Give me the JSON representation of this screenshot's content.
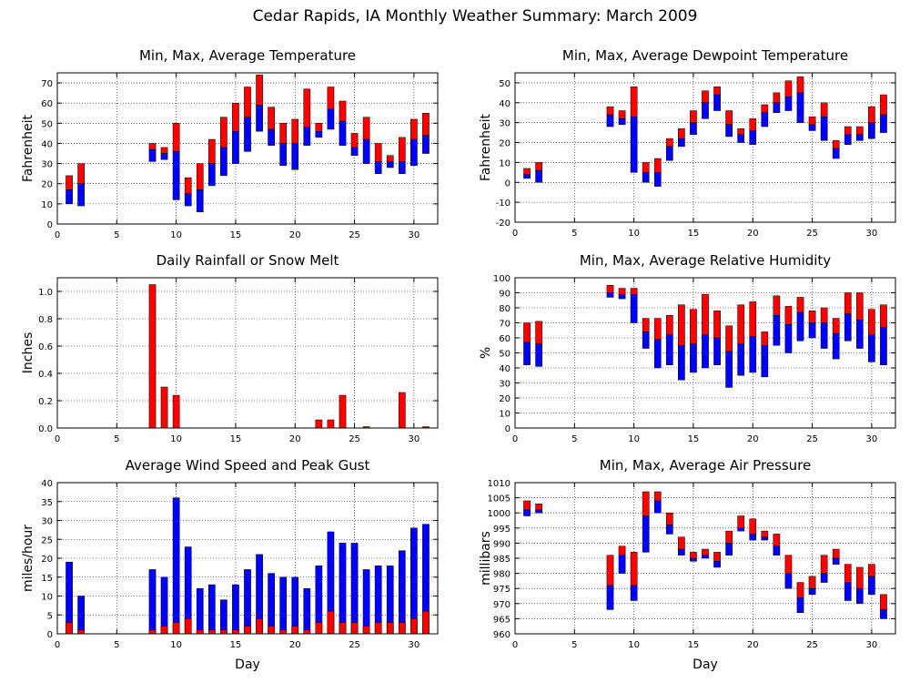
{
  "page": {
    "title": "Cedar Rapids, IA Monthly Weather Summary: March 2009"
  },
  "colors": {
    "red": "#ff0000",
    "blue": "#0000ff"
  },
  "chart_data": [
    {
      "id": "temp",
      "type": "bar",
      "title": "Min, Max, Average Temperature",
      "xlabel": "",
      "ylabel": "Fahrenheit",
      "xlim": [
        0,
        32
      ],
      "xticks": [
        0,
        5,
        10,
        15,
        20,
        25,
        30
      ],
      "ylim": [
        0,
        75
      ],
      "yticks": [
        0,
        10,
        20,
        30,
        40,
        50,
        60,
        70
      ],
      "grid": true,
      "encoding": "floating bars: blue from min to avg, red from avg to max",
      "days": [
        1,
        2,
        8,
        9,
        10,
        11,
        12,
        13,
        14,
        15,
        16,
        17,
        18,
        19,
        20,
        21,
        22,
        23,
        24,
        25,
        26,
        27,
        28,
        29,
        30,
        31
      ],
      "min": [
        10,
        9,
        31,
        32,
        12,
        9,
        6,
        19,
        24,
        30,
        36,
        46,
        39,
        29,
        27,
        39,
        43,
        47,
        39,
        34,
        30,
        25,
        28,
        25,
        29,
        35
      ],
      "avg": [
        17,
        20,
        37,
        35,
        36,
        15,
        17,
        30,
        38,
        46,
        53,
        59,
        47,
        40,
        40,
        48,
        46,
        57,
        51,
        38,
        42,
        31,
        31,
        31,
        42,
        44
      ],
      "max": [
        24,
        30,
        40,
        38,
        50,
        23,
        30,
        42,
        53,
        60,
        68,
        74,
        58,
        50,
        52,
        67,
        50,
        68,
        61,
        45,
        53,
        40,
        34,
        43,
        52,
        55
      ]
    },
    {
      "id": "dewpoint",
      "type": "bar",
      "title": "Min, Max, Average Dewpoint Temperature",
      "xlabel": "",
      "ylabel": "Fahrenheit",
      "xlim": [
        0,
        32
      ],
      "xticks": [
        0,
        5,
        10,
        15,
        20,
        25,
        30
      ],
      "ylim": [
        -20,
        55
      ],
      "yticks": [
        -20,
        -10,
        0,
        10,
        20,
        30,
        40,
        50
      ],
      "grid": true,
      "encoding": "floating bars: blue from min to avg, red from avg to max",
      "days": [
        1,
        2,
        8,
        9,
        10,
        11,
        12,
        13,
        14,
        15,
        16,
        17,
        18,
        19,
        20,
        21,
        22,
        23,
        24,
        25,
        26,
        27,
        28,
        29,
        30,
        31
      ],
      "min": [
        2,
        0,
        28,
        29,
        5,
        0,
        -2,
        11,
        18,
        24,
        32,
        36,
        23,
        20,
        19,
        28,
        35,
        36,
        30,
        26,
        21,
        12,
        19,
        21,
        22,
        25
      ],
      "avg": [
        4,
        6,
        34,
        32,
        33,
        5,
        5,
        18,
        22,
        30,
        40,
        44,
        29,
        24,
        26,
        35,
        40,
        43,
        45,
        29,
        33,
        17,
        24,
        24,
        30,
        34
      ],
      "max": [
        7,
        10,
        38,
        36,
        48,
        10,
        12,
        22,
        27,
        36,
        46,
        48,
        36,
        27,
        32,
        39,
        45,
        51,
        53,
        33,
        40,
        21,
        28,
        28,
        38,
        44
      ]
    },
    {
      "id": "rain",
      "type": "bar",
      "title": "Daily Rainfall or Snow Melt",
      "xlabel": "",
      "ylabel": "Inches",
      "xlim": [
        0,
        32
      ],
      "xticks": [
        0,
        5,
        10,
        15,
        20,
        25,
        30
      ],
      "ylim": [
        0,
        1.1
      ],
      "yticks": [
        0.0,
        0.2,
        0.4,
        0.6,
        0.8,
        1.0
      ],
      "ytick_labels": [
        "0.0",
        "0.2",
        "0.4",
        "0.6",
        "0.8",
        "1.0"
      ],
      "grid": true,
      "days": [
        8,
        9,
        10,
        22,
        23,
        24,
        26,
        29,
        31
      ],
      "values": [
        1.05,
        0.3,
        0.24,
        0.06,
        0.06,
        0.24,
        0.01,
        0.26,
        0.01
      ]
    },
    {
      "id": "rh",
      "type": "bar",
      "title": "Min, Max, Average Relative Humidity",
      "xlabel": "",
      "ylabel": "%",
      "xlim": [
        0,
        32
      ],
      "xticks": [
        0,
        5,
        10,
        15,
        20,
        25,
        30
      ],
      "ylim": [
        0,
        100
      ],
      "yticks": [
        0,
        10,
        20,
        30,
        40,
        50,
        60,
        70,
        80,
        90,
        100
      ],
      "grid": true,
      "encoding": "floating bars: blue from min to avg, red from avg to max",
      "days": [
        1,
        2,
        8,
        9,
        10,
        11,
        12,
        13,
        14,
        15,
        16,
        17,
        18,
        19,
        20,
        21,
        22,
        23,
        24,
        25,
        26,
        27,
        28,
        29,
        30,
        31
      ],
      "min": [
        42,
        41,
        87,
        86,
        70,
        53,
        40,
        42,
        32,
        37,
        40,
        42,
        27,
        35,
        37,
        34,
        55,
        50,
        58,
        60,
        53,
        46,
        58,
        53,
        44,
        42
      ],
      "avg": [
        57,
        56,
        90,
        89,
        89,
        64,
        59,
        62,
        55,
        56,
        62,
        60,
        51,
        56,
        61,
        55,
        75,
        69,
        77,
        70,
        70,
        63,
        76,
        72,
        62,
        67
      ],
      "max": [
        70,
        71,
        95,
        93,
        93,
        73,
        73,
        75,
        82,
        79,
        89,
        78,
        68,
        82,
        84,
        64,
        88,
        81,
        87,
        78,
        80,
        73,
        90,
        90,
        79,
        82
      ]
    },
    {
      "id": "wind",
      "type": "bar",
      "title": "Average Wind Speed and Peak Gust",
      "xlabel": "Day",
      "ylabel": "miles/hour",
      "xlim": [
        0,
        32
      ],
      "xticks": [
        0,
        5,
        10,
        15,
        20,
        25,
        30
      ],
      "ylim": [
        0,
        40
      ],
      "yticks": [
        0,
        5,
        10,
        15,
        20,
        25,
        30,
        35,
        40
      ],
      "grid": true,
      "encoding": "blue bar from 0 to peak gust, red bar from 0 to average speed",
      "days": [
        1,
        2,
        8,
        9,
        10,
        11,
        12,
        13,
        14,
        15,
        16,
        17,
        18,
        19,
        20,
        21,
        22,
        23,
        24,
        25,
        26,
        27,
        28,
        29,
        30,
        31
      ],
      "avg": [
        3,
        1,
        1,
        2,
        3,
        4,
        1,
        1,
        1,
        1,
        2,
        4,
        2,
        1,
        2,
        1,
        3,
        6,
        3,
        3,
        2,
        3,
        3,
        3,
        4,
        6
      ],
      "gust": [
        19,
        10,
        17,
        15,
        36,
        23,
        12,
        13,
        9,
        13,
        17,
        21,
        16,
        15,
        15,
        12,
        18,
        27,
        24,
        24,
        17,
        18,
        18,
        22,
        28,
        29
      ]
    },
    {
      "id": "pressure",
      "type": "bar",
      "title": "Min, Max, Average Air Pressure",
      "xlabel": "Day",
      "ylabel": "millibars",
      "xlim": [
        0,
        32
      ],
      "xticks": [
        0,
        5,
        10,
        15,
        20,
        25,
        30
      ],
      "ylim": [
        960,
        1010
      ],
      "yticks": [
        960,
        965,
        970,
        975,
        980,
        985,
        990,
        995,
        1000,
        1005,
        1010
      ],
      "grid": true,
      "encoding": "floating bars: blue from min to avg, red from avg to max",
      "days": [
        1,
        2,
        8,
        9,
        10,
        11,
        12,
        13,
        14,
        15,
        16,
        17,
        18,
        19,
        20,
        21,
        22,
        23,
        24,
        25,
        26,
        27,
        28,
        29,
        30,
        31
      ],
      "min": [
        999,
        1000,
        968,
        980,
        971,
        987,
        1000,
        993,
        986,
        984,
        985,
        982,
        986,
        994,
        991,
        991,
        986,
        975,
        967,
        973,
        977,
        983,
        971,
        970,
        973,
        965
      ],
      "avg": [
        1001,
        1001,
        976,
        986,
        976,
        999,
        1004,
        996,
        988,
        985,
        986,
        984,
        990,
        995,
        993,
        992,
        989,
        980,
        972,
        975,
        980,
        985,
        977,
        975,
        979,
        968
      ],
      "max": [
        1004,
        1003,
        986,
        989,
        987,
        1007,
        1007,
        1000,
        992,
        987,
        988,
        987,
        994,
        999,
        998,
        994,
        993,
        986,
        977,
        979,
        986,
        988,
        983,
        982,
        983,
        973
      ]
    }
  ]
}
